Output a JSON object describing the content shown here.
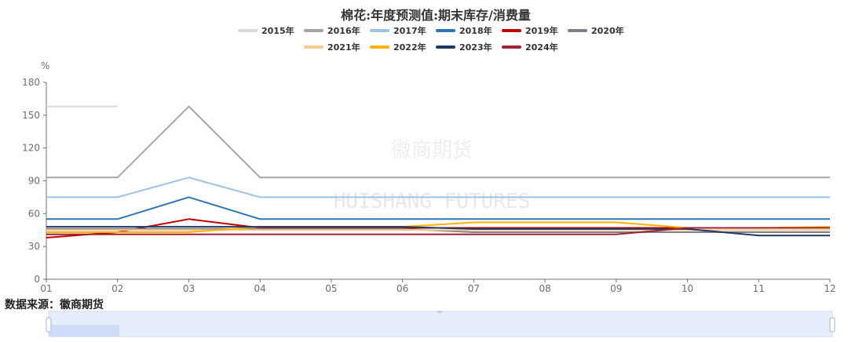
{
  "chart_data": {
    "type": "line",
    "title": "棉花:年度预测值:期末库存/消费量",
    "ylabel": "%",
    "ylim": [
      0,
      180
    ],
    "yticks": [
      0,
      30,
      60,
      90,
      120,
      150,
      180
    ],
    "x": [
      "01",
      "02",
      "03",
      "04",
      "05",
      "06",
      "07",
      "08",
      "09",
      "10",
      "11",
      "12"
    ],
    "legend_position": "top-center",
    "grid": false,
    "series": [
      {
        "name": "2015年",
        "color": "#d9d9d9",
        "values": [
          158,
          158,
          null,
          null,
          null,
          null,
          null,
          null,
          null,
          null,
          null,
          null
        ]
      },
      {
        "name": "2016年",
        "color": "#a6a6a6",
        "values": [
          93,
          93,
          158,
          93,
          93,
          93,
          93,
          93,
          93,
          93,
          93,
          93
        ]
      },
      {
        "name": "2017年",
        "color": "#9dc3e6",
        "values": [
          75,
          75,
          93,
          75,
          75,
          75,
          75,
          75,
          75,
          75,
          75,
          75
        ]
      },
      {
        "name": "2018年",
        "color": "#2e75b6",
        "values": [
          55,
          55,
          75,
          55,
          55,
          55,
          55,
          55,
          55,
          55,
          55,
          55
        ]
      },
      {
        "name": "2019年",
        "color": "#c00000",
        "values": [
          38,
          43,
          55,
          47,
          47,
          47,
          47,
          47,
          47,
          47,
          47,
          47
        ]
      },
      {
        "name": "2020年",
        "color": "#7f7f89",
        "values": [
          46,
          46,
          46,
          46,
          46,
          46,
          43,
          43,
          43,
          43,
          43,
          43
        ]
      },
      {
        "name": "2021年",
        "color": "#f8cb8c",
        "values": [
          45,
          45,
          45,
          45,
          45,
          45,
          45,
          45,
          45,
          45,
          45,
          45
        ]
      },
      {
        "name": "2022年",
        "color": "#ffb000",
        "values": [
          43,
          43,
          43,
          48,
          48,
          48,
          52,
          52,
          52,
          47,
          47,
          48
        ]
      },
      {
        "name": "2023年",
        "color": "#1f3864",
        "values": [
          48,
          48,
          48,
          48,
          48,
          48,
          46,
          46,
          46,
          46,
          40,
          40
        ]
      },
      {
        "name": "2024年",
        "color": "#9b2335",
        "values": [
          41,
          41,
          41,
          41,
          41,
          41,
          41,
          41,
          41,
          47,
          47,
          47
        ]
      }
    ]
  },
  "watermark": {
    "cn": "徽商期货",
    "en": "HUISHANG FUTURES"
  },
  "source_text": "数据来源：徽商期货"
}
